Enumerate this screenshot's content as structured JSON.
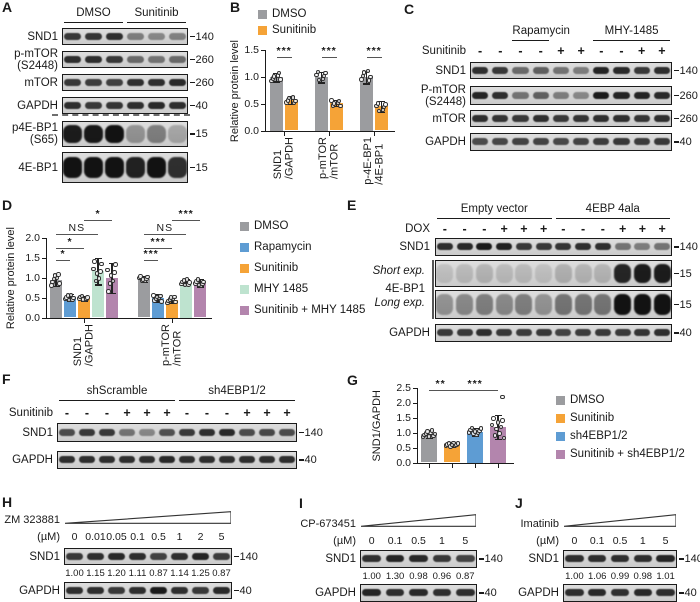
{
  "panel_letters": {
    "A": "A",
    "B": "B",
    "C": "C",
    "D": "D",
    "E": "E",
    "F": "F",
    "G": "G",
    "H": "H",
    "I": "I",
    "J": "J"
  },
  "colors": {
    "dmso": "#9B9C9F",
    "rapamycin": "#5E9CD3",
    "sunitinib": "#F5A337",
    "mhy1485": "#BEE3CF",
    "sunitinib_mhy": "#B385AD",
    "sh4ebp": "#5E9CD3",
    "sunitinib_sh4ebp": "#B385AD",
    "band": "#121212"
  },
  "blots": {
    "A": {
      "groups": [
        {
          "name": "DMSO",
          "from": 0,
          "to": 2
        },
        {
          "name": "Sunitinib",
          "from": 3,
          "to": 5
        }
      ],
      "rows": [
        {
          "label": "SND1",
          "mw": "140",
          "bands": [
            0.8,
            0.82,
            0.85,
            0.45,
            0.4,
            0.43
          ]
        },
        {
          "label": "p-mTOR\n(S2448)",
          "mw": "260",
          "bands": [
            0.85,
            0.85,
            0.8,
            0.55,
            0.5,
            0.55
          ]
        },
        {
          "label": "mTOR",
          "mw": "260",
          "bands": [
            0.8,
            0.78,
            0.76,
            0.85,
            0.86,
            0.88
          ]
        },
        {
          "label": "GAPDH",
          "mw": "40",
          "bands": [
            0.85,
            0.8,
            0.82,
            0.85,
            0.88,
            0.85
          ],
          "sep_after": true
        },
        {
          "label": "p4E-BP1\n(S65)",
          "mw": "15",
          "style": "blob",
          "bands": [
            0.95,
            0.97,
            1.0,
            0.35,
            0.45,
            0.25
          ]
        },
        {
          "label": "4E-BP1",
          "mw": "15",
          "style": "blob",
          "bands": [
            1.0,
            1.0,
            1.0,
            0.92,
            1.0,
            0.85
          ]
        }
      ]
    },
    "C": {
      "treat": {
        "label": "Sunitinib",
        "signs": [
          "-",
          "-",
          "-",
          "-",
          "+",
          "+",
          "-",
          "-",
          "+",
          "+"
        ]
      },
      "groups": [
        {
          "name": "Rapamycin",
          "from": 2,
          "to": 3
        },
        {
          "name": "MHY-1485",
          "from": 6,
          "to": 9
        }
      ],
      "rows": [
        {
          "label": "SND1",
          "mw": "140",
          "bands": [
            0.85,
            0.8,
            0.55,
            0.6,
            0.5,
            0.45,
            0.9,
            0.88,
            0.8,
            0.85
          ]
        },
        {
          "label": "P-mTOR\n(S2448)",
          "mw": "260",
          "bands": [
            0.9,
            0.85,
            0.5,
            0.6,
            0.45,
            0.4,
            0.95,
            0.9,
            0.9,
            0.88
          ]
        },
        {
          "label": "mTOR",
          "mw": "260",
          "bands": [
            0.85,
            0.82,
            0.8,
            0.85,
            0.8,
            0.82,
            0.85,
            0.85,
            0.82,
            0.85
          ]
        },
        {
          "label": "GAPDH",
          "mw": "40",
          "bands": [
            0.7,
            0.72,
            0.75,
            0.75,
            0.72,
            0.75,
            0.78,
            0.8,
            0.78,
            0.8
          ]
        }
      ]
    },
    "E": {
      "treat": {
        "label": "DOX",
        "signs": [
          "-",
          "-",
          "-",
          "+",
          "+",
          "+",
          "-",
          "-",
          "-",
          "+",
          "+",
          "+"
        ]
      },
      "groups": [
        {
          "name": "Empty vector",
          "from": 0,
          "to": 5
        },
        {
          "name": "4EBP 4ala",
          "from": 6,
          "to": 11
        }
      ],
      "bracket": {
        "labels": [
          "Short exp.",
          "4E-BP1",
          "Long exp."
        ]
      },
      "rows": [
        {
          "label": "SND1",
          "mw": "140",
          "bands": [
            0.85,
            0.88,
            0.95,
            0.92,
            0.8,
            0.8,
            0.82,
            0.85,
            0.85,
            0.5,
            0.45,
            0.5
          ]
        },
        {
          "label": "",
          "mw": "15",
          "style": "blob",
          "bands": [
            0.12,
            0.15,
            0.18,
            0.15,
            0.15,
            0.12,
            0.2,
            0.18,
            0.18,
            0.9,
            0.95,
            0.95
          ]
        },
        {
          "label": "",
          "mw": "15",
          "style": "blob",
          "bands": [
            0.35,
            0.4,
            0.45,
            0.4,
            0.45,
            0.35,
            0.5,
            0.5,
            0.5,
            1.0,
            1.0,
            1.0
          ]
        },
        {
          "label": "GAPDH",
          "mw": "40",
          "bands": [
            0.8,
            0.8,
            0.85,
            0.8,
            0.78,
            0.8,
            0.75,
            0.78,
            0.8,
            0.8,
            0.82,
            0.85
          ]
        }
      ]
    },
    "F": {
      "treat": {
        "label": "Sunitinib",
        "signs": [
          "-",
          "-",
          "-",
          "+",
          "+",
          "+",
          "-",
          "-",
          "-",
          "+",
          "+",
          "+"
        ]
      },
      "groups": [
        {
          "name": "shScramble",
          "from": 0,
          "to": 5
        },
        {
          "name": "sh4EBP1/2",
          "from": 6,
          "to": 11
        }
      ],
      "rows": [
        {
          "label": "SND1",
          "mw": "140",
          "bands": [
            0.7,
            0.8,
            0.8,
            0.5,
            0.4,
            0.68,
            0.8,
            0.85,
            0.88,
            0.7,
            0.72,
            0.7
          ]
        },
        {
          "label": "GAPDH",
          "mw": "40",
          "bands": [
            0.85,
            0.85,
            0.85,
            0.85,
            0.85,
            0.88,
            0.85,
            0.85,
            0.85,
            0.85,
            0.85,
            0.85
          ]
        }
      ]
    }
  },
  "drug_blots": {
    "H": {
      "drug": "ZM 323881",
      "unit": "(µM)",
      "conc": [
        "0",
        "0.01",
        "0.05",
        "0.1",
        "0.5",
        "1",
        "2",
        "5"
      ],
      "values": [
        "1.00",
        "1.15",
        "1.20",
        "1.11",
        "0.87",
        "1.14",
        "1.25",
        "0.87"
      ],
      "rows": [
        {
          "label": "SND1",
          "mw": "140",
          "bands": [
            0.8,
            0.85,
            0.88,
            0.85,
            0.75,
            0.85,
            0.9,
            0.78
          ]
        },
        {
          "label": "GAPDH",
          "mw": "40",
          "bands": [
            0.85,
            0.85,
            0.8,
            0.85,
            0.95,
            0.85,
            0.8,
            0.88
          ]
        }
      ]
    },
    "I": {
      "drug": "CP-673451",
      "unit": "(µM)",
      "conc": [
        "0",
        "0.1",
        "0.5",
        "1",
        "5"
      ],
      "values": [
        "1.00",
        "1.30",
        "0.98",
        "0.96",
        "0.87"
      ],
      "rows": [
        {
          "label": "SND1",
          "mw": "140",
          "bands": [
            0.85,
            0.9,
            0.88,
            0.8,
            0.75
          ]
        },
        {
          "label": "GAPDH",
          "mw": "40",
          "bands": [
            0.9,
            0.85,
            0.88,
            0.85,
            0.85
          ]
        }
      ]
    },
    "J": {
      "drug": "Imatinib",
      "unit": "(µM)",
      "conc": [
        "0",
        "0.1",
        "0.5",
        "1",
        "5"
      ],
      "values": [
        "1.00",
        "1.06",
        "0.99",
        "0.98",
        "1.01"
      ],
      "rows": [
        {
          "label": "SND1",
          "mw": "140",
          "bands": [
            0.85,
            0.85,
            0.85,
            0.85,
            0.9
          ]
        },
        {
          "label": "GAPDH",
          "mw": "40",
          "bands": [
            0.85,
            0.88,
            0.85,
            0.88,
            0.85
          ]
        }
      ]
    }
  },
  "chart_data": [
    {
      "panel": "B",
      "type": "bar",
      "title": "",
      "ylabel": "Relative protein level",
      "ylim": [
        0,
        1.5
      ],
      "yticks": [
        "0.0",
        "0.5",
        "1.0",
        "1.5"
      ],
      "categories": [
        [
          "SND1",
          "/GAPDH"
        ],
        [
          "p-mTOR",
          "/mTOR"
        ],
        [
          "p-4E-BP1",
          "/4E-BP1"
        ]
      ],
      "series": [
        {
          "name": "DMSO",
          "color": "dmso",
          "values": [
            1.0,
            1.0,
            1.0
          ],
          "errors": [
            0.08,
            0.1,
            0.12
          ]
        },
        {
          "name": "Sunitinib",
          "color": "sunitinib",
          "values": [
            0.57,
            0.52,
            0.46
          ],
          "errors": [
            0.07,
            0.06,
            0.1
          ]
        }
      ],
      "points_per_bar": 6,
      "sig": [
        {
          "from": 0,
          "to": 1,
          "y": 1.37,
          "label": "***"
        },
        {
          "from": 2,
          "to": 3,
          "y": 1.37,
          "label": "***"
        },
        {
          "from": 4,
          "to": 5,
          "y": 1.37,
          "label": "***"
        }
      ],
      "legend": [
        "DMSO",
        "Sunitinib"
      ]
    },
    {
      "panel": "D",
      "type": "bar",
      "title": "",
      "ylabel": "Relative protein level",
      "ylim": [
        0,
        2.0
      ],
      "yticks": [
        "0.0",
        "0.5",
        "1.0",
        "1.5",
        "2.0"
      ],
      "categories": [
        [
          "SND1",
          "/GAPDH"
        ],
        [
          "p-mTOR",
          "/mTOR"
        ]
      ],
      "series": [
        {
          "name": "DMSO",
          "color": "dmso",
          "values": [
            0.95,
            0.97
          ],
          "errors": [
            0.15,
            0.07
          ]
        },
        {
          "name": "Rapamycin",
          "color": "rapamycin",
          "values": [
            0.52,
            0.5
          ],
          "errors": [
            0.08,
            0.09
          ]
        },
        {
          "name": "Sunitinib",
          "color": "sunitinib",
          "values": [
            0.5,
            0.45
          ],
          "errors": [
            0.06,
            0.08
          ]
        },
        {
          "name": "MHY 1485",
          "color": "mhy1485",
          "values": [
            1.17,
            0.9
          ],
          "errors": [
            0.33,
            0.08
          ]
        },
        {
          "name": "Sunitinib + MHY 1485",
          "color": "sunitinib_mhy",
          "values": [
            1.0,
            0.88
          ],
          "errors": [
            0.38,
            0.09
          ]
        }
      ],
      "points_per_bar": 7,
      "sig": [
        {
          "from": 0,
          "to": 1,
          "y": 1.45,
          "label": "*"
        },
        {
          "from": 0,
          "to": 2,
          "y": 1.75,
          "label": "*"
        },
        {
          "from": 0,
          "to": 3,
          "y": 2.1,
          "label": "NS"
        },
        {
          "from": 2,
          "to": 4,
          "y": 2.45,
          "label": "*"
        },
        {
          "from": 5,
          "to": 6,
          "y": 1.45,
          "label": "***"
        },
        {
          "from": 5,
          "to": 7,
          "y": 1.75,
          "label": "***"
        },
        {
          "from": 5,
          "to": 8,
          "y": 2.1,
          "label": "NS"
        },
        {
          "from": 7,
          "to": 9,
          "y": 2.45,
          "label": "***"
        }
      ],
      "legend": [
        "DMSO",
        "Rapamycin",
        "Sunitinib",
        "MHY 1485",
        "Sunitinib + MHY 1485"
      ]
    },
    {
      "panel": "G",
      "type": "bar",
      "title": "",
      "ylabel": "SND1/GAPDH",
      "ylim": [
        0,
        2.5
      ],
      "yticks": [
        "0.0",
        "0.5",
        "1.0",
        "1.5",
        "2.0",
        "2.5"
      ],
      "categories": [
        [
          ""
        ]
      ],
      "series": [
        {
          "name": "DMSO",
          "color": "dmso",
          "values": [
            0.97
          ],
          "errors": [
            0.12
          ]
        },
        {
          "name": "Sunitinib",
          "color": "sunitinib",
          "values": [
            0.62
          ],
          "errors": [
            0.07
          ]
        },
        {
          "name": "sh4EBP1/2",
          "color": "sh4ebp",
          "values": [
            1.05
          ],
          "errors": [
            0.13
          ]
        },
        {
          "name": "Sunitinib + sh4EBP1/2",
          "color": "sunitinib_sh4ebp",
          "values": [
            1.2
          ],
          "errors": [
            0.4
          ]
        }
      ],
      "points_per_bar": 9,
      "outliers": [
        {
          "series": 3,
          "cat": 0,
          "value": 2.2
        }
      ],
      "sig": [
        {
          "from": 0,
          "to": 1,
          "y": 2.45,
          "label": "**"
        },
        {
          "from": 1,
          "to": 3,
          "y": 2.45,
          "label": "***"
        }
      ],
      "legend": [
        "DMSO",
        "Sunitinib",
        "sh4EBP1/2",
        "Sunitinib + sh4EBP1/2"
      ]
    }
  ]
}
